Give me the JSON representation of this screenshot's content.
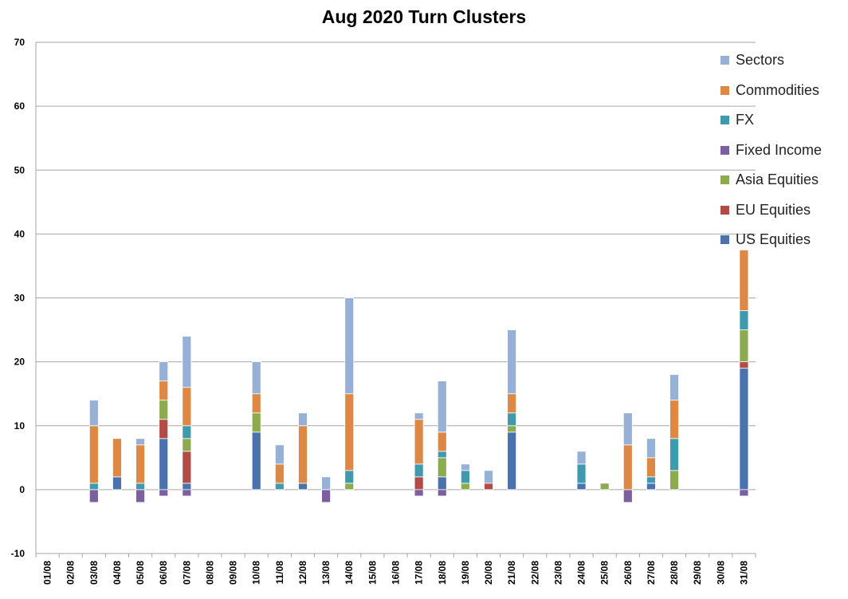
{
  "chart_data": {
    "type": "bar",
    "stacked": true,
    "title": "Aug 2020 Turn Clusters",
    "xlabel": "",
    "ylabel": "",
    "ylim": [
      -10,
      70
    ],
    "yticks": [
      -10,
      0,
      10,
      20,
      30,
      40,
      50,
      60,
      70
    ],
    "grid": true,
    "legend_position": "right",
    "categories": [
      "01/08",
      "02/08",
      "03/08",
      "04/08",
      "05/08",
      "06/08",
      "07/08",
      "08/08",
      "09/08",
      "10/08",
      "11/08",
      "12/08",
      "13/08",
      "14/08",
      "15/08",
      "16/08",
      "17/08",
      "18/08",
      "19/08",
      "20/08",
      "21/08",
      "22/08",
      "23/08",
      "24/08",
      "25/08",
      "26/08",
      "27/08",
      "28/08",
      "29/08",
      "30/08",
      "31/08"
    ],
    "series": [
      {
        "name": "US Equities",
        "color": "#4a72ac",
        "values": [
          0,
          0,
          0,
          2,
          0,
          8,
          1,
          0,
          0,
          9,
          0,
          1,
          0,
          0,
          0,
          0,
          0,
          2,
          0,
          0,
          9,
          0,
          0,
          1,
          0,
          0,
          1,
          0,
          0,
          0,
          19
        ]
      },
      {
        "name": "EU Equities",
        "color": "#b14b45",
        "values": [
          0,
          0,
          0,
          0,
          0,
          3,
          5,
          0,
          0,
          0,
          0,
          0,
          0,
          0,
          0,
          0,
          2,
          0,
          0,
          1,
          0,
          0,
          0,
          0,
          0,
          0,
          0,
          0,
          0,
          0,
          1
        ]
      },
      {
        "name": "Asia Equities",
        "color": "#8cab4e",
        "values": [
          0,
          0,
          0,
          0,
          0,
          3,
          2,
          0,
          0,
          3,
          0,
          0,
          0,
          1,
          0,
          0,
          0,
          3,
          1,
          0,
          1,
          0,
          0,
          0,
          1,
          0,
          0,
          3,
          0,
          0,
          5
        ]
      },
      {
        "name": "Fixed Income",
        "color": "#7b5f9e",
        "values": [
          0,
          0,
          -2,
          0,
          -2,
          -1,
          -1,
          0,
          0,
          0,
          0,
          0,
          -2,
          0,
          0,
          0,
          -1,
          -1,
          0,
          0,
          0,
          0,
          0,
          0,
          0,
          -2,
          0,
          0,
          0,
          0,
          -1
        ]
      },
      {
        "name": "FX",
        "color": "#3f9aae",
        "values": [
          0,
          0,
          1,
          0,
          1,
          0,
          2,
          0,
          0,
          0,
          1,
          0,
          0,
          2,
          0,
          0,
          2,
          1,
          2,
          0,
          2,
          0,
          0,
          3,
          0,
          0,
          1,
          5,
          0,
          0,
          3
        ]
      },
      {
        "name": "Commodities",
        "color": "#dd8844",
        "values": [
          0,
          0,
          9,
          6,
          6,
          3,
          6,
          0,
          0,
          3,
          3,
          9,
          0,
          12,
          0,
          0,
          7,
          3,
          0,
          0,
          3,
          0,
          0,
          0,
          0,
          7,
          3,
          6,
          0,
          0,
          9.5
        ]
      },
      {
        "name": "Sectors",
        "color": "#97b0d6",
        "values": [
          0,
          0,
          4,
          0,
          1,
          3,
          8,
          0,
          0,
          5,
          3,
          2,
          2,
          15,
          0,
          0,
          1,
          8,
          1,
          2,
          10,
          0,
          0,
          2,
          0,
          5,
          3,
          4,
          0,
          0,
          0
        ]
      }
    ]
  }
}
